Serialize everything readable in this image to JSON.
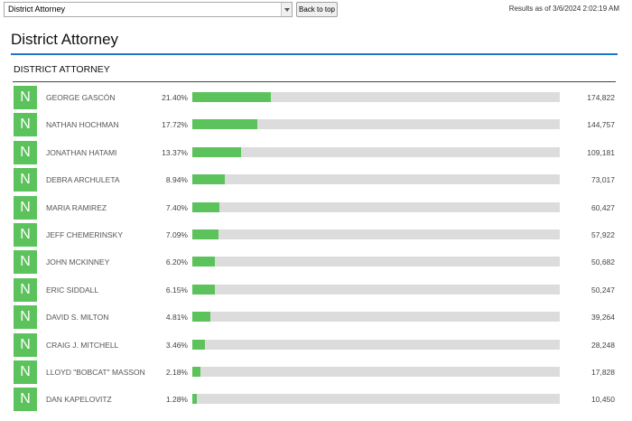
{
  "header": {
    "select_value": "District Attorney",
    "back_to_top": "Back to top",
    "results_as_of": "Results as of 3/6/2024 2:02:19 AM"
  },
  "page": {
    "title": "District Attorney",
    "section_title": "DISTRICT ATTORNEY"
  },
  "colors": {
    "accent": "#1b76c8",
    "bar_fill": "#5cc35c",
    "bar_track": "#dcdcdc"
  },
  "candidates": [
    {
      "badge": "N",
      "name": "GEORGE GASCÓN",
      "percent_label": "21.40%",
      "percent": 21.4,
      "votes": "174,822"
    },
    {
      "badge": "N",
      "name": "NATHAN HOCHMAN",
      "percent_label": "17.72%",
      "percent": 17.72,
      "votes": "144,757"
    },
    {
      "badge": "N",
      "name": "JONATHAN HATAMI",
      "percent_label": "13.37%",
      "percent": 13.37,
      "votes": "109,181"
    },
    {
      "badge": "N",
      "name": "DEBRA ARCHULETA",
      "percent_label": "8.94%",
      "percent": 8.94,
      "votes": "73,017"
    },
    {
      "badge": "N",
      "name": "MARIA RAMIREZ",
      "percent_label": "7.40%",
      "percent": 7.4,
      "votes": "60,427"
    },
    {
      "badge": "N",
      "name": "JEFF CHEMERINSKY",
      "percent_label": "7.09%",
      "percent": 7.09,
      "votes": "57,922"
    },
    {
      "badge": "N",
      "name": "JOHN MCKINNEY",
      "percent_label": "6.20%",
      "percent": 6.2,
      "votes": "50,682"
    },
    {
      "badge": "N",
      "name": "ERIC SIDDALL",
      "percent_label": "6.15%",
      "percent": 6.15,
      "votes": "50,247"
    },
    {
      "badge": "N",
      "name": "DAVID S. MILTON",
      "percent_label": "4.81%",
      "percent": 4.81,
      "votes": "39,264"
    },
    {
      "badge": "N",
      "name": "CRAIG J. MITCHELL",
      "percent_label": "3.46%",
      "percent": 3.46,
      "votes": "28,248"
    },
    {
      "badge": "N",
      "name": "LLOYD \"BOBCAT\" MASSON",
      "percent_label": "2.18%",
      "percent": 2.18,
      "votes": "17,828"
    },
    {
      "badge": "N",
      "name": "DAN KAPELOVITZ",
      "percent_label": "1.28%",
      "percent": 1.28,
      "votes": "10,450"
    }
  ]
}
